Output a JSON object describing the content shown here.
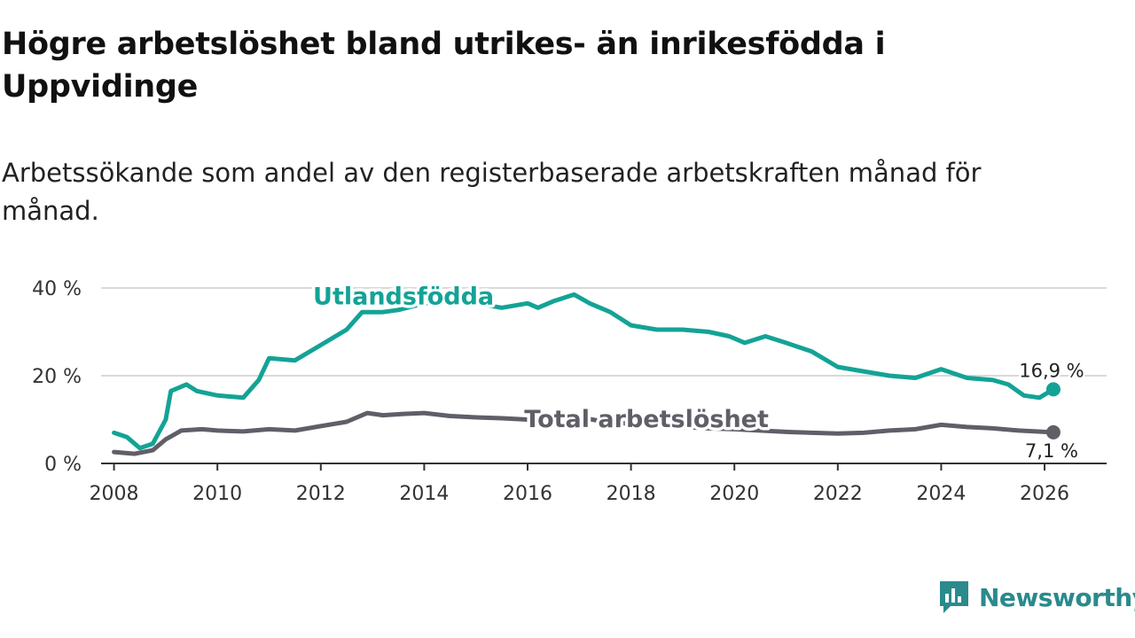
{
  "title": "Högre arbetslöshet bland utrikes- än inrikesfödda i Uppvidinge",
  "subtitle": "Arbetssökande som andel av den registerbaserade arbetskraften månad för månad.",
  "brand": {
    "name": "Newsworthy",
    "color": "#2a8a8c",
    "icon": "newsworthy-logo-icon"
  },
  "colors": {
    "utlandsfodda": "#13a396",
    "total": "#615e68",
    "grid": "#d9d9d9",
    "axis": "#333333"
  },
  "chart_data": {
    "type": "line",
    "title": "Högre arbetslöshet bland utrikes- än inrikesfödda i Uppvidinge",
    "xlabel": "",
    "ylabel": "",
    "xlim": [
      2007.75,
      2027.2
    ],
    "ylim": [
      0,
      40
    ],
    "y_ticks": [
      0,
      20,
      40
    ],
    "y_tick_labels": [
      "0 %",
      "20 %",
      "40 %"
    ],
    "x_ticks": [
      2008,
      2010,
      2012,
      2014,
      2016,
      2018,
      2020,
      2022,
      2024,
      2026
    ],
    "x_tick_labels": [
      "2008",
      "2010",
      "2012",
      "2014",
      "2016",
      "2018",
      "2020",
      "2022",
      "2024",
      "2026"
    ],
    "grid": true,
    "legend": "inline labels",
    "series": [
      {
        "name": "Utlandsfödda",
        "end_label": "16,9 %",
        "points": [
          [
            2008.0,
            7.0
          ],
          [
            2008.25,
            6.0
          ],
          [
            2008.5,
            3.5
          ],
          [
            2008.75,
            4.5
          ],
          [
            2009.0,
            10.0
          ],
          [
            2009.1,
            16.5
          ],
          [
            2009.4,
            18.0
          ],
          [
            2009.6,
            16.5
          ],
          [
            2010.0,
            15.5
          ],
          [
            2010.5,
            15.0
          ],
          [
            2010.8,
            19.0
          ],
          [
            2011.0,
            24.0
          ],
          [
            2011.5,
            23.5
          ],
          [
            2012.0,
            27.0
          ],
          [
            2012.5,
            30.5
          ],
          [
            2012.8,
            34.5
          ],
          [
            2013.2,
            34.5
          ],
          [
            2013.5,
            35.0
          ],
          [
            2014.0,
            36.5
          ],
          [
            2014.5,
            37.0
          ],
          [
            2015.0,
            36.5
          ],
          [
            2015.5,
            35.5
          ],
          [
            2016.0,
            36.5
          ],
          [
            2016.2,
            35.5
          ],
          [
            2016.5,
            37.0
          ],
          [
            2016.9,
            38.5
          ],
          [
            2017.2,
            36.5
          ],
          [
            2017.6,
            34.5
          ],
          [
            2018.0,
            31.5
          ],
          [
            2018.5,
            30.5
          ],
          [
            2019.0,
            30.5
          ],
          [
            2019.5,
            30.0
          ],
          [
            2019.9,
            29.0
          ],
          [
            2020.2,
            27.5
          ],
          [
            2020.6,
            29.0
          ],
          [
            2021.0,
            27.5
          ],
          [
            2021.5,
            25.5
          ],
          [
            2022.0,
            22.0
          ],
          [
            2022.5,
            21.0
          ],
          [
            2023.0,
            20.0
          ],
          [
            2023.5,
            19.5
          ],
          [
            2024.0,
            21.5
          ],
          [
            2024.5,
            19.5
          ],
          [
            2025.0,
            19.0
          ],
          [
            2025.3,
            18.0
          ],
          [
            2025.6,
            15.5
          ],
          [
            2025.9,
            15.0
          ],
          [
            2026.17,
            16.9
          ]
        ]
      },
      {
        "name": "Total arbetslöshet",
        "end_label": "7,1 %",
        "points": [
          [
            2008.0,
            2.6
          ],
          [
            2008.4,
            2.2
          ],
          [
            2008.75,
            3.0
          ],
          [
            2009.0,
            5.5
          ],
          [
            2009.3,
            7.5
          ],
          [
            2009.7,
            7.8
          ],
          [
            2010.0,
            7.5
          ],
          [
            2010.5,
            7.3
          ],
          [
            2011.0,
            7.8
          ],
          [
            2011.5,
            7.5
          ],
          [
            2012.0,
            8.5
          ],
          [
            2012.5,
            9.5
          ],
          [
            2012.9,
            11.5
          ],
          [
            2013.2,
            11.0
          ],
          [
            2013.6,
            11.3
          ],
          [
            2014.0,
            11.5
          ],
          [
            2014.5,
            10.8
          ],
          [
            2015.0,
            10.5
          ],
          [
            2015.5,
            10.3
          ],
          [
            2016.0,
            10.0
          ],
          [
            2016.5,
            10.2
          ],
          [
            2017.0,
            10.5
          ],
          [
            2017.5,
            9.5
          ],
          [
            2018.0,
            9.0
          ],
          [
            2018.5,
            8.5
          ],
          [
            2019.0,
            8.3
          ],
          [
            2019.5,
            8.0
          ],
          [
            2020.0,
            7.8
          ],
          [
            2020.5,
            7.5
          ],
          [
            2021.0,
            7.2
          ],
          [
            2021.5,
            7.0
          ],
          [
            2022.0,
            6.8
          ],
          [
            2022.5,
            7.0
          ],
          [
            2023.0,
            7.5
          ],
          [
            2023.5,
            7.8
          ],
          [
            2024.0,
            8.8
          ],
          [
            2024.5,
            8.3
          ],
          [
            2025.0,
            8.0
          ],
          [
            2025.5,
            7.5
          ],
          [
            2026.17,
            7.1
          ]
        ]
      }
    ],
    "annotations": [
      {
        "text": "Utlandsfödda",
        "series": "Utlandsfödda",
        "x": 2013.6,
        "y": 37.5
      },
      {
        "text": "Total arbetslöshet",
        "series": "Total arbetslöshet",
        "x": 2018.3,
        "y": 9.5
      }
    ]
  }
}
